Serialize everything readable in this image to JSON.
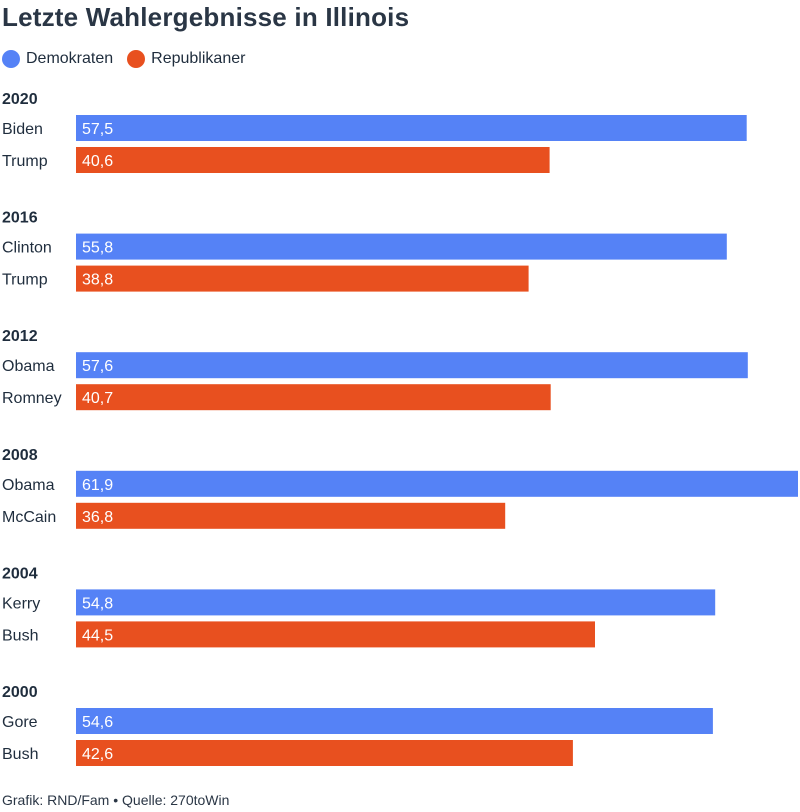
{
  "chart_data": {
    "type": "bar",
    "orientation": "horizontal",
    "title": "Letzte Wahlergebnisse in Illinois",
    "legend": [
      {
        "name": "Demokraten",
        "color": "#5582f6"
      },
      {
        "name": "Republikaner",
        "color": "#e8501f"
      }
    ],
    "xlim": [
      0,
      61.9
    ],
    "groups": [
      {
        "year": "2020",
        "bars": [
          {
            "candidate": "Biden",
            "party": "Demokraten",
            "value": 57.5,
            "label": "57,5"
          },
          {
            "candidate": "Trump",
            "party": "Republikaner",
            "value": 40.6,
            "label": "40,6"
          }
        ]
      },
      {
        "year": "2016",
        "bars": [
          {
            "candidate": "Clinton",
            "party": "Demokraten",
            "value": 55.8,
            "label": "55,8"
          },
          {
            "candidate": "Trump",
            "party": "Republikaner",
            "value": 38.8,
            "label": "38,8"
          }
        ]
      },
      {
        "year": "2012",
        "bars": [
          {
            "candidate": "Obama",
            "party": "Demokraten",
            "value": 57.6,
            "label": "57,6"
          },
          {
            "candidate": "Romney",
            "party": "Republikaner",
            "value": 40.7,
            "label": "40,7"
          }
        ]
      },
      {
        "year": "2008",
        "bars": [
          {
            "candidate": "Obama",
            "party": "Demokraten",
            "value": 61.9,
            "label": "61,9"
          },
          {
            "candidate": "McCain",
            "party": "Republikaner",
            "value": 36.8,
            "label": "36,8"
          }
        ]
      },
      {
        "year": "2004",
        "bars": [
          {
            "candidate": "Kerry",
            "party": "Demokraten",
            "value": 54.8,
            "label": "54,8"
          },
          {
            "candidate": "Bush",
            "party": "Republikaner",
            "value": 44.5,
            "label": "44,5"
          }
        ]
      },
      {
        "year": "2000",
        "bars": [
          {
            "candidate": "Gore",
            "party": "Demokraten",
            "value": 54.6,
            "label": "54,6"
          },
          {
            "candidate": "Bush",
            "party": "Republikaner",
            "value": 42.6,
            "label": "42,6"
          }
        ]
      }
    ]
  },
  "footer": "Grafik: RND/Fam • Quelle: 270toWin"
}
